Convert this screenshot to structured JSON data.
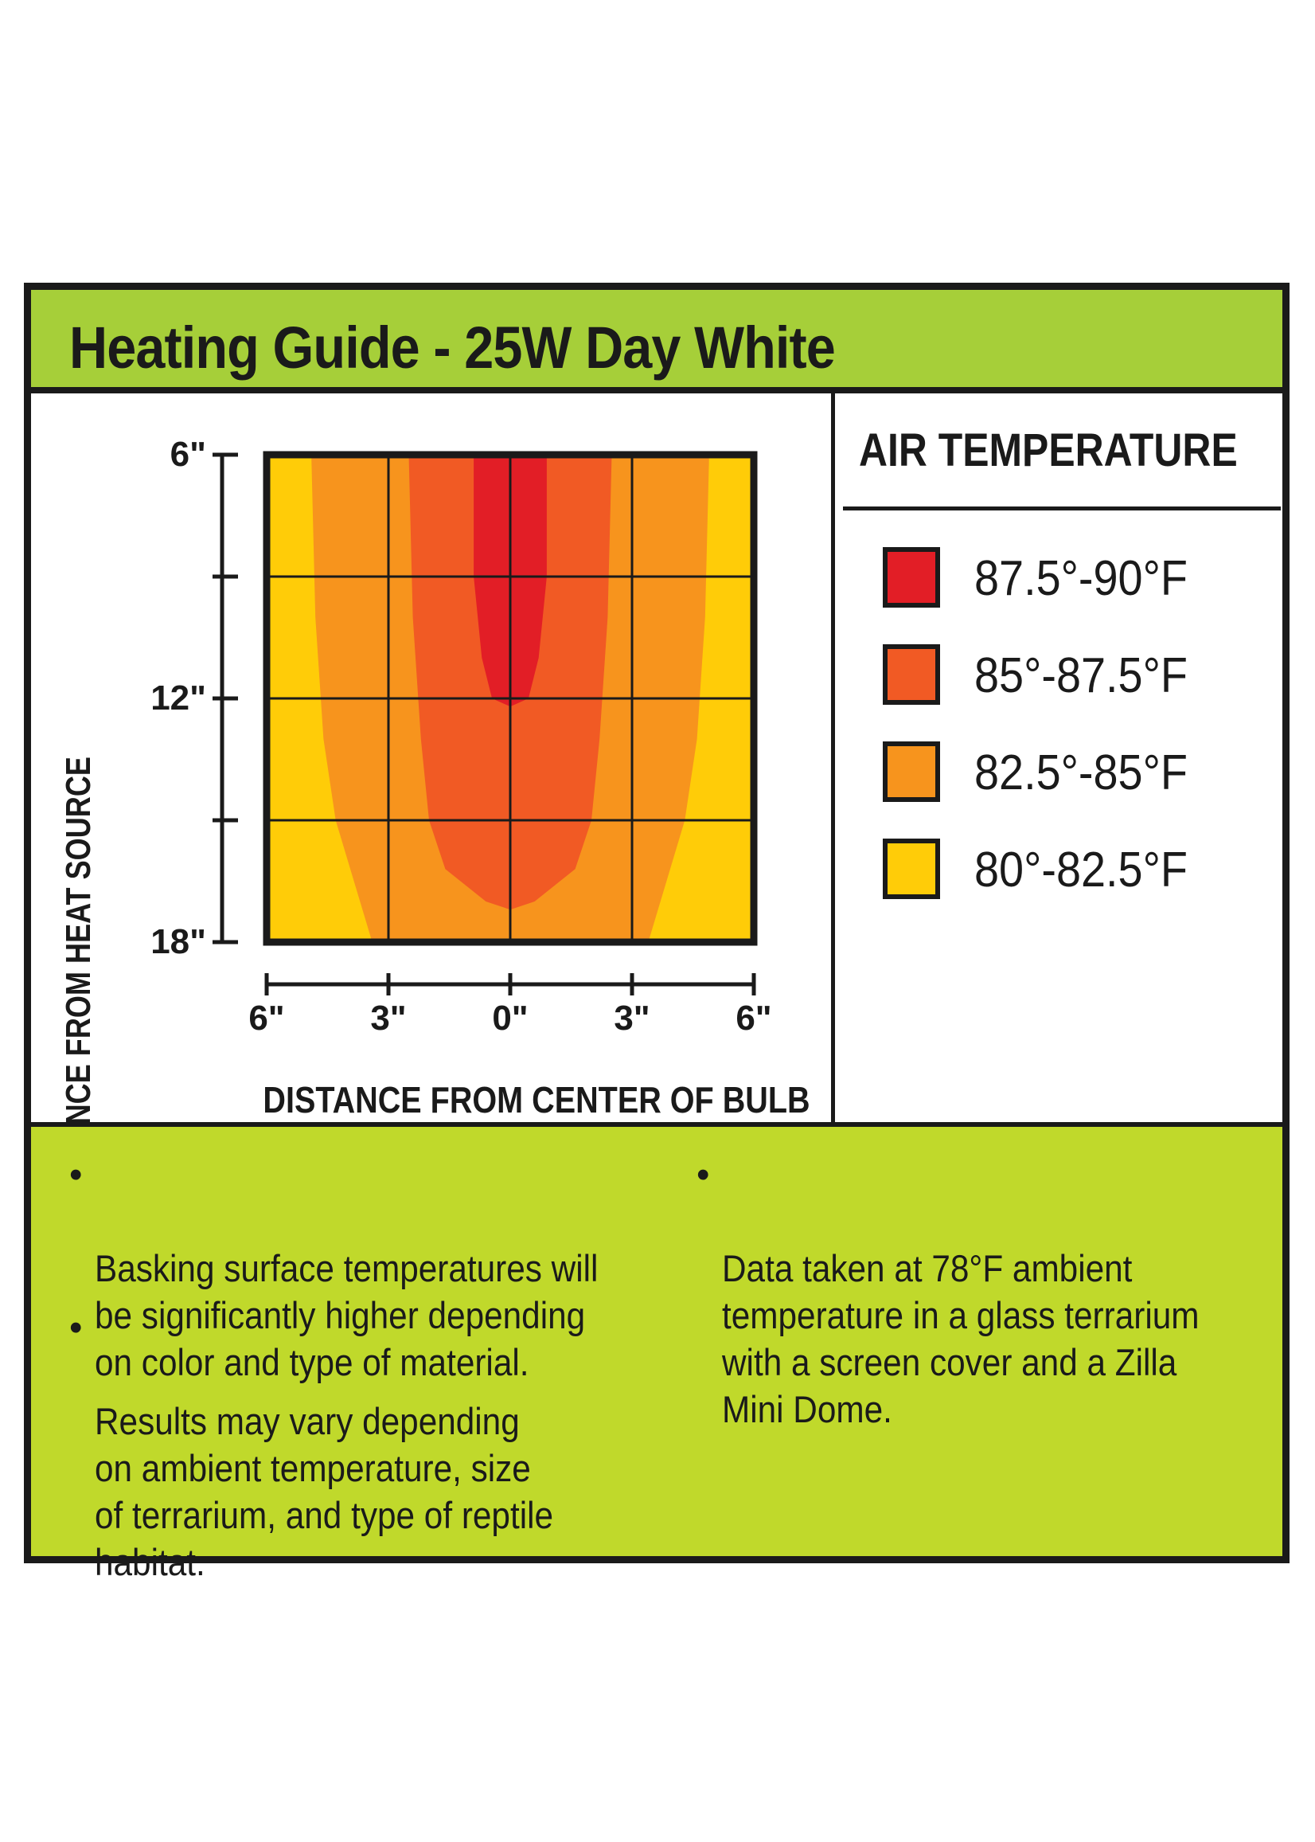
{
  "title": "Heating Guide - 25W Day White",
  "colors": {
    "header_green": "#a6cf39",
    "notes_green": "#c0d92b",
    "zone_1": "#e21e26",
    "zone_2": "#f15a24",
    "zone_3": "#f7941d",
    "zone_4": "#ffcc08",
    "ink": "#1a1a1a"
  },
  "chart_data": {
    "type": "heatmap",
    "xlabel": "DISTANCE FROM CENTER OF BULB",
    "ylabel": "DISTANCE FROM HEAT SOURCE",
    "x_tick_labels": [
      "6\"",
      "3\"",
      "0\"",
      "3\"",
      "6\""
    ],
    "x_ticks": [
      -6,
      -3,
      0,
      3,
      6
    ],
    "y_tick_labels": [
      "6\"",
      "12\"",
      "18\""
    ],
    "y_ticks": [
      6,
      12,
      18
    ],
    "xlim": [
      -6,
      6
    ],
    "ylim": [
      6,
      18
    ],
    "x_unit": "in",
    "y_unit": "in",
    "grid": true,
    "zones": [
      {
        "range": "87.5°-90°F",
        "half_width": [
          [
            6,
            0.9
          ],
          [
            9,
            0.9
          ],
          [
            11,
            0.7
          ],
          [
            12,
            0.45
          ],
          [
            12.2,
            0
          ]
        ]
      },
      {
        "range": "85°-87.5°F",
        "half_width": [
          [
            6,
            2.5
          ],
          [
            10,
            2.4
          ],
          [
            13,
            2.2
          ],
          [
            15,
            2.0
          ],
          [
            16.2,
            1.6
          ],
          [
            17,
            0.6
          ],
          [
            17.2,
            0
          ]
        ]
      },
      {
        "range": "82.5°-85°F",
        "half_width": [
          [
            6,
            4.9
          ],
          [
            10,
            4.8
          ],
          [
            13,
            4.6
          ],
          [
            15,
            4.3
          ],
          [
            17,
            3.7
          ],
          [
            18,
            3.4
          ]
        ]
      },
      {
        "range": "80°-82.5°F",
        "half_width": [
          [
            6,
            6
          ],
          [
            18,
            6
          ]
        ]
      }
    ]
  },
  "legend": {
    "title": "AIR TEMPERATURE",
    "items": [
      {
        "label": "87.5°-90°F",
        "color": "#e21e26"
      },
      {
        "label": "85°-87.5°F",
        "color": "#f15a24"
      },
      {
        "label": "82.5°-85°F",
        "color": "#f7941d"
      },
      {
        "label": "80°-82.5°F",
        "color": "#ffcc08"
      }
    ]
  },
  "notes": {
    "bullet": "•",
    "left": [
      "Basking surface temperatures will\nbe significantly higher depending\non color and type of material.",
      "Results may vary depending\non ambient temperature, size\nof terrarium, and type of reptile\nhabitat."
    ],
    "right": [
      "Data taken at 78°F ambient\ntemperature in a glass terrarium\nwith a screen cover and a Zilla\nMini Dome."
    ]
  }
}
